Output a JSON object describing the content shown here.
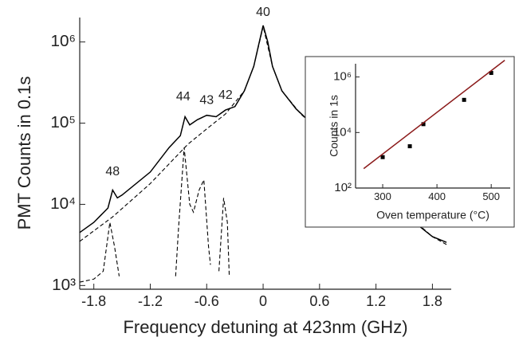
{
  "chart_data": [
    {
      "type": "line",
      "xlabel": "Frequency detuning at 423nm (GHz)",
      "ylabel": "PMT Counts in  0.1s",
      "log_y": true,
      "xlim": [
        -1.95,
        2.0
      ],
      "xticks": [
        -1.8,
        -1.2,
        -0.6,
        0,
        0.6,
        1.2,
        1.8
      ],
      "ylim": [
        900,
        2000000
      ],
      "yticks": [
        {
          "value": 1000,
          "label": "10³"
        },
        {
          "value": 10000,
          "label": "10⁴"
        },
        {
          "value": 100000,
          "label": "10⁵"
        },
        {
          "value": 1000000,
          "label": "10⁶"
        }
      ],
      "series": [
        {
          "color": "#000000",
          "dash": false,
          "x": [
            -1.95,
            -1.8,
            -1.65,
            -1.6,
            -1.55,
            -1.5,
            -1.2,
            -1.0,
            -0.88,
            -0.83,
            -0.78,
            -0.7,
            -0.6,
            -0.5,
            -0.4,
            -0.3,
            -0.2,
            -0.1,
            -0.05,
            0,
            0.05,
            0.1,
            0.2,
            0.35,
            0.6,
            0.9,
            1.2,
            1.5,
            1.65,
            1.8,
            1.95
          ],
          "values": [
            4500,
            6000,
            9000,
            15000,
            12000,
            13000,
            25000,
            50000,
            70000,
            120000,
            95000,
            110000,
            125000,
            120000,
            145000,
            160000,
            250000,
            500000,
            900000,
            1600000,
            1000000,
            500000,
            250000,
            150000,
            80000,
            40000,
            20000,
            9000,
            5500,
            4000,
            3400
          ]
        },
        {
          "color": "#000000",
          "dash": true,
          "x": [
            -1.95,
            -1.6,
            -1.2,
            -0.8,
            -0.6,
            -0.4,
            -0.2,
            -0.1,
            0,
            0.1,
            0.2,
            0.4,
            0.9,
            1.5,
            1.8,
            1.95
          ],
          "values": [
            3500,
            7000,
            18000,
            55000,
            85000,
            130000,
            250000,
            500000,
            1550000,
            500000,
            250000,
            130000,
            40000,
            8000,
            4000,
            3200
          ]
        },
        {
          "color": "#000000",
          "dash": true,
          "x": [
            -1.95,
            -1.8,
            -1.7,
            -1.63,
            -1.58,
            -1.53,
            null,
            -0.93,
            -0.9,
            -0.84,
            -0.78,
            -0.74,
            -0.68,
            -0.63,
            -0.58,
            -0.56,
            null,
            -0.47,
            -0.42,
            -0.38,
            -0.36
          ],
          "values": [
            1100,
            1200,
            1500,
            6000,
            3000,
            1300,
            null,
            1300,
            5000,
            50000,
            10000,
            8000,
            15000,
            20000,
            3000,
            1800,
            null,
            1500,
            12000,
            6000,
            1300
          ]
        }
      ],
      "annotations": [
        {
          "text": "40",
          "x": 0,
          "y": 2300000
        },
        {
          "text": "42",
          "x": -0.4,
          "y": 220000
        },
        {
          "text": "43",
          "x": -0.6,
          "y": 190000
        },
        {
          "text": "44",
          "x": -0.85,
          "y": 210000
        },
        {
          "text": "48",
          "x": -1.6,
          "y": 25000
        }
      ]
    },
    {
      "type": "scatter",
      "xlabel": "Oven temperature (°C)",
      "ylabel": "Counts in 1s",
      "log_y": true,
      "xlim": [
        250,
        535
      ],
      "xticks": [
        300,
        400,
        500
      ],
      "ylim": [
        100,
        3000000
      ],
      "yticks": [
        {
          "value": 100,
          "label": "10²"
        },
        {
          "value": 10000,
          "label": "10⁴"
        },
        {
          "value": 1000000,
          "label": "10⁶"
        }
      ],
      "series": [
        {
          "color": "#000000",
          "mode": "markers",
          "x": [
            300,
            350,
            375,
            450,
            500
          ],
          "values": [
            1300,
            3200,
            20000,
            150000,
            1400000
          ]
        },
        {
          "color": "#8b1a1a",
          "mode": "lines",
          "x": [
            265,
            525
          ],
          "values": [
            500,
            4000000
          ]
        }
      ]
    }
  ]
}
